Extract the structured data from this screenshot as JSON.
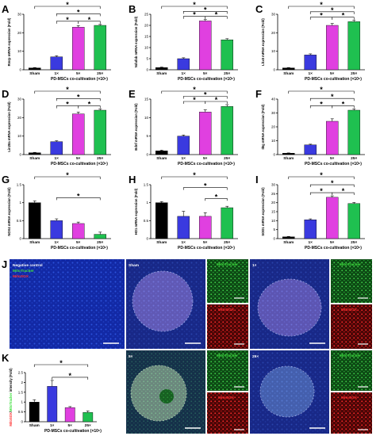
{
  "colors": {
    "sham": "#000000",
    "x1": "#3a3adf",
    "x5": "#e040e0",
    "x25": "#1fc050",
    "mitotracker_label": "#3fe03f",
    "mitosox_label": "#ff3030",
    "dapi_label": "#6b8cff"
  },
  "chart_data": [
    {
      "id": "A",
      "type": "bar",
      "panel_label": "A",
      "categories": [
        "Sham",
        "1×",
        "5×",
        "25×"
      ],
      "values": [
        1,
        7,
        23,
        24
      ],
      "errors": [
        0.2,
        0.6,
        0.9,
        0.5
      ],
      "ylabel": "Rmrp mRNA expression (Fold)",
      "ylim": [
        0,
        30
      ],
      "yticks": [
        "0",
        "10",
        "20",
        "30"
      ],
      "xlabel": "PD-MSCs co-cultivation (×10⁵)",
      "sig_brackets": [
        {
          "from": 0,
          "to": 3,
          "level": 3
        },
        {
          "from": 1,
          "to": 3,
          "level": 2
        },
        {
          "from": 1,
          "to": 2,
          "level": 1
        },
        {
          "from": 2,
          "to": 3,
          "level": 1
        }
      ]
    },
    {
      "id": "B",
      "type": "bar",
      "panel_label": "B",
      "categories": [
        "Sham",
        "1×",
        "5×",
        "25×"
      ],
      "values": [
        1,
        5,
        22,
        13.5
      ],
      "errors": [
        0.2,
        0.4,
        0.6,
        0.5
      ],
      "ylabel": "Ndufab mRNA expression (Fold)",
      "ylim": [
        0,
        25
      ],
      "yticks": [
        "0",
        "5",
        "10",
        "15",
        "20",
        "25"
      ],
      "xlabel": "PD-MSCs co-cultivation (×10⁵)",
      "sig_brackets": [
        {
          "from": 0,
          "to": 3,
          "level": 3
        },
        {
          "from": 1,
          "to": 3,
          "level": 2
        },
        {
          "from": 1,
          "to": 2,
          "level": 1
        },
        {
          "from": 2,
          "to": 3,
          "level": 1
        }
      ]
    },
    {
      "id": "C",
      "type": "bar",
      "panel_label": "C",
      "categories": [
        "Sham",
        "1×",
        "5×",
        "25×"
      ],
      "values": [
        1,
        8,
        24,
        26
      ],
      "errors": [
        0.2,
        0.6,
        1.0,
        0.7
      ],
      "ylabel": "Lhx8 mRNA expression (Fold)",
      "ylim": [
        0,
        30
      ],
      "yticks": [
        "0",
        "10",
        "20",
        "30"
      ],
      "xlabel": "PD-MSCs co-cultivation (×10⁵)",
      "sig_brackets": [
        {
          "from": 0,
          "to": 3,
          "level": 3
        },
        {
          "from": 1,
          "to": 3,
          "level": 2
        },
        {
          "from": 1,
          "to": 2,
          "level": 1
        },
        {
          "from": 2,
          "to": 3,
          "level": 1
        }
      ]
    },
    {
      "id": "D",
      "type": "bar",
      "panel_label": "D",
      "categories": [
        "Sham",
        "1×",
        "5×",
        "25×"
      ],
      "values": [
        1,
        7,
        22,
        24
      ],
      "errors": [
        0.2,
        0.5,
        1.0,
        0.6
      ],
      "ylabel": "Lin28a mRNA expression (Fold)",
      "ylim": [
        0,
        30
      ],
      "yticks": [
        "0",
        "10",
        "20",
        "30"
      ],
      "xlabel": "PD-MSCs co-cultivation (×10⁵)",
      "sig_brackets": [
        {
          "from": 0,
          "to": 3,
          "level": 3
        },
        {
          "from": 1,
          "to": 3,
          "level": 2
        },
        {
          "from": 1,
          "to": 2,
          "level": 1
        },
        {
          "from": 2,
          "to": 3,
          "level": 1
        }
      ]
    },
    {
      "id": "E",
      "type": "bar",
      "panel_label": "E",
      "categories": [
        "Sham",
        "1×",
        "5×",
        "25×"
      ],
      "values": [
        1,
        5,
        11.5,
        13
      ],
      "errors": [
        0.2,
        0.3,
        0.6,
        0.5
      ],
      "ylabel": "Bdnf mRNA expression (Fold)",
      "ylim": [
        0,
        15
      ],
      "yticks": [
        "0",
        "5",
        "10",
        "15"
      ],
      "xlabel": "PD-MSCs co-cultivation (×10⁵)",
      "sig_brackets": [
        {
          "from": 0,
          "to": 3,
          "level": 3
        },
        {
          "from": 1,
          "to": 3,
          "level": 2
        },
        {
          "from": 1,
          "to": 2,
          "level": 1
        },
        {
          "from": 2,
          "to": 3,
          "level": 1
        }
      ]
    },
    {
      "id": "F",
      "type": "bar",
      "panel_label": "F",
      "categories": [
        "Sham",
        "1×",
        "5×",
        "25×"
      ],
      "values": [
        1,
        7,
        24,
        32
      ],
      "errors": [
        0.2,
        0.5,
        1.8,
        0.9
      ],
      "ylabel": "Il6g mRNA expression (Fold)",
      "ylim": [
        0,
        40
      ],
      "yticks": [
        "0",
        "10",
        "20",
        "30",
        "40"
      ],
      "xlabel": "PD-MSCs co-cultivation (×10⁵)",
      "sig_brackets": [
        {
          "from": 0,
          "to": 3,
          "level": 3
        },
        {
          "from": 1,
          "to": 3,
          "level": 2
        },
        {
          "from": 1,
          "to": 2,
          "level": 1
        },
        {
          "from": 2,
          "to": 3,
          "level": 1
        }
      ]
    },
    {
      "id": "G",
      "type": "bar",
      "panel_label": "G",
      "categories": [
        "Sham",
        "1×",
        "5×",
        "25×"
      ],
      "values": [
        1.0,
        0.5,
        0.42,
        0.12
      ],
      "errors": [
        0.05,
        0.05,
        0.04,
        0.06
      ],
      "ylabel": "NOX4 mRNA expression (Fold)",
      "ylim": [
        0,
        1.5
      ],
      "yticks": [
        "0",
        "0.5",
        "1",
        "1.5"
      ],
      "xlabel": "PD-MSCs co-cultivation (×10⁵)",
      "sig_brackets": [
        {
          "from": 0,
          "to": 3,
          "level": 2
        },
        {
          "from": 1,
          "to": 3,
          "level": 1
        }
      ]
    },
    {
      "id": "H",
      "type": "bar",
      "panel_label": "H",
      "categories": [
        "Sham",
        "1×",
        "5×",
        "25×"
      ],
      "values": [
        1.0,
        0.62,
        0.62,
        0.86
      ],
      "errors": [
        0.03,
        0.14,
        0.1,
        0.04
      ],
      "ylabel": "HO1 mRNA expression (Fold)",
      "ylim": [
        0,
        1.5
      ],
      "yticks": [
        "0",
        "0.5",
        "1",
        "1.5"
      ],
      "xlabel": "PD-MSCs co-cultivation (×10⁵)",
      "sig_brackets": [
        {
          "from": 0,
          "to": 3,
          "level": 3
        },
        {
          "from": 1,
          "to": 3,
          "level": 2
        },
        {
          "from": 2,
          "to": 3,
          "level": 1
        }
      ]
    },
    {
      "id": "I",
      "type": "bar",
      "panel_label": "I",
      "categories": [
        "Sham",
        "1×",
        "5×",
        "25×"
      ],
      "values": [
        1,
        10.5,
        23,
        19.5
      ],
      "errors": [
        0.2,
        0.5,
        0.8,
        0.6
      ],
      "ylabel": "SOD1 mRNA expression (Fold)",
      "ylim": [
        0,
        30
      ],
      "yticks": [
        "0",
        "5",
        "10",
        "15",
        "20",
        "25",
        "30"
      ],
      "xlabel": "PD-MSCs co-cultivation (×10⁵)",
      "sig_brackets": [
        {
          "from": 0,
          "to": 3,
          "level": 3
        },
        {
          "from": 1,
          "to": 3,
          "level": 2
        },
        {
          "from": 1,
          "to": 2,
          "level": 1
        },
        {
          "from": 2,
          "to": 3,
          "level": 1
        }
      ]
    },
    {
      "id": "K",
      "type": "bar",
      "panel_label": "K",
      "categories": [
        "Sham",
        "1×",
        "5×",
        "25×"
      ],
      "values": [
        1.0,
        1.8,
        0.72,
        0.47
      ],
      "errors": [
        0.12,
        0.3,
        0.05,
        0.08
      ],
      "ylabel_parts": [
        "MitoSOX",
        "/",
        "MitoTracker",
        " intensity (Fold)"
      ],
      "ylim": [
        0,
        2.5
      ],
      "yticks": [
        "0",
        "0.5",
        "1",
        "1.5",
        "2",
        "2.5"
      ],
      "xlabel": "PD-MSCs co-cultivation (×10⁵)",
      "sig_brackets": [
        {
          "from": 0,
          "to": 3,
          "level": 2
        },
        {
          "from": 1,
          "to": 3,
          "level": 1
        }
      ]
    }
  ],
  "micrographs": {
    "panel_label": "J",
    "neg": {
      "t1": "Negative control",
      "t2": "MitoTracker",
      "t3": "MitoSOX"
    },
    "sham": "Sham",
    "x1": "1×",
    "x5": "5×",
    "x25": "25×",
    "mitotracker": "MitoTracker",
    "mitosox": "MitoSOX"
  }
}
